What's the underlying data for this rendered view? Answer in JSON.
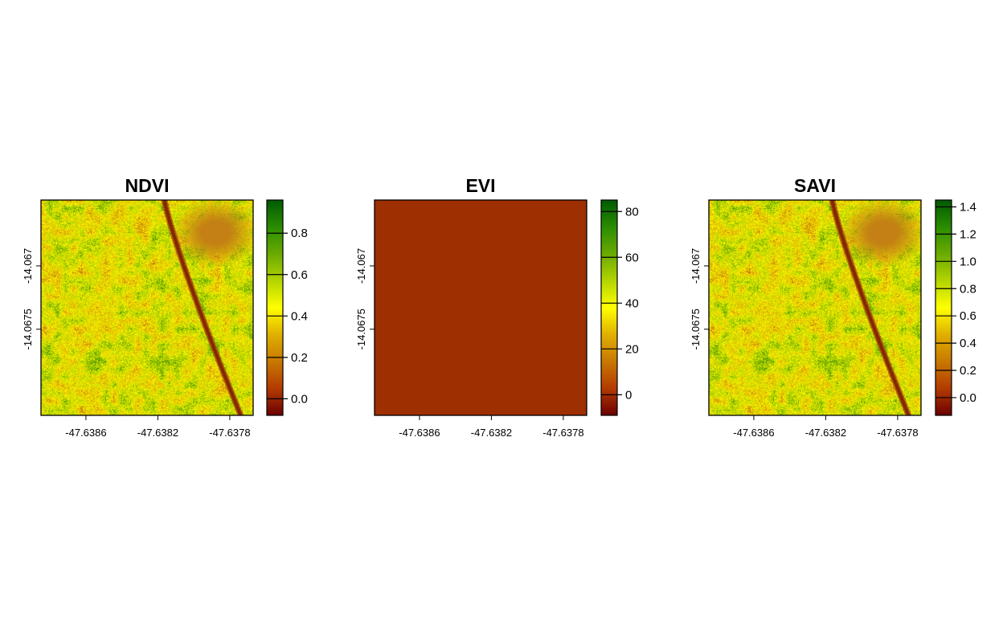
{
  "colors": {
    "ramp": [
      "#6b0000",
      "#b33b00",
      "#c87800",
      "#e0b000",
      "#ffff00",
      "#b4d400",
      "#6aaa00",
      "#2a8c00",
      "#005a00"
    ],
    "evi_fill": "#9e2f00",
    "frame": "#000000"
  },
  "chart_data": [
    {
      "type": "heatmap",
      "title": "NDVI",
      "x_ticks": [
        -47.6386,
        -47.6382,
        -47.6378
      ],
      "x_tick_labels": [
        "-47.6386",
        "-47.6382",
        "-47.6378"
      ],
      "y_ticks": [
        -14.067,
        -14.0675
      ],
      "y_tick_labels": [
        "-14.067",
        "-14.0675"
      ],
      "legend_range": [
        -0.08,
        0.96
      ],
      "legend_ticks": [
        0.0,
        0.2,
        0.4,
        0.6,
        0.8
      ],
      "legend_tick_labels": [
        "0.0",
        "0.2",
        "0.4",
        "0.6",
        "0.8"
      ],
      "legend_position": "right",
      "texture": "vegetation"
    },
    {
      "type": "heatmap",
      "title": "EVI",
      "x_ticks": [
        -47.6386,
        -47.6382,
        -47.6378
      ],
      "x_tick_labels": [
        "-47.6386",
        "-47.6382",
        "-47.6378"
      ],
      "y_ticks": [
        -14.067,
        -14.0675
      ],
      "y_tick_labels": [
        "-14.067",
        "-14.0675"
      ],
      "legend_range": [
        -9,
        85
      ],
      "legend_ticks": [
        0,
        20,
        40,
        60,
        80
      ],
      "legend_tick_labels": [
        "0",
        "20",
        "40",
        "60",
        "80"
      ],
      "legend_position": "right",
      "texture": "uniform"
    },
    {
      "type": "heatmap",
      "title": "SAVI",
      "x_ticks": [
        -47.6386,
        -47.6382,
        -47.6378
      ],
      "x_tick_labels": [
        "-47.6386",
        "-47.6382",
        "-47.6378"
      ],
      "y_ticks": [
        -14.067,
        -14.0675
      ],
      "y_tick_labels": [
        "-14.067",
        "-14.0675"
      ],
      "legend_range": [
        -0.13,
        1.45
      ],
      "legend_ticks": [
        0.0,
        0.2,
        0.4,
        0.6,
        0.8,
        1.0,
        1.2,
        1.4
      ],
      "legend_tick_labels": [
        "0.0",
        "0.2",
        "0.4",
        "0.6",
        "0.8",
        "1.0",
        "1.2",
        "1.4"
      ],
      "legend_position": "right",
      "texture": "vegetation"
    }
  ]
}
